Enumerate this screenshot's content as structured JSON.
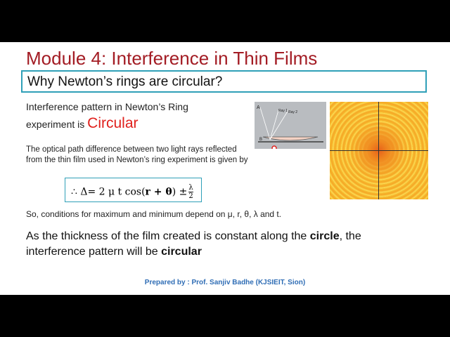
{
  "title": "Module 4: Interference in Thin Films",
  "question": "Why Newton’s rings are circular?",
  "intro": {
    "line1": "Interference  pattern in Newton’s Ring",
    "line2": "experiment is ",
    "highlight": "Circular"
  },
  "paragraph": [
    "The optical path difference between two light rays reflected",
    "from the thin film used in Newton’s ring experiment is given by"
  ],
  "formula": {
    "prefix": "∴ Δ= 2 μ t cos(",
    "bold": "r + θ",
    "suffix": ") ±",
    "numerator": "λ",
    "denominator": "2"
  },
  "conditions": "So, conditions for maximum and minimum depend on μ, r, θ, λ and t.",
  "conclusion": [
    {
      "text": "As the thickness of the film created is constant along the ",
      "bold": false
    },
    {
      "text": "circle",
      "bold": true
    },
    {
      "text": ", the interference pattern will be ",
      "bold": false
    },
    {
      "text": "circular",
      "bold": true
    }
  ],
  "diagram": {
    "labels": [
      "A",
      "Ray 1",
      "Ray 2",
      "B"
    ]
  },
  "footer": "Prepared by : Prof. Sanjiv Badhe (KJSIEIT, Sion)"
}
